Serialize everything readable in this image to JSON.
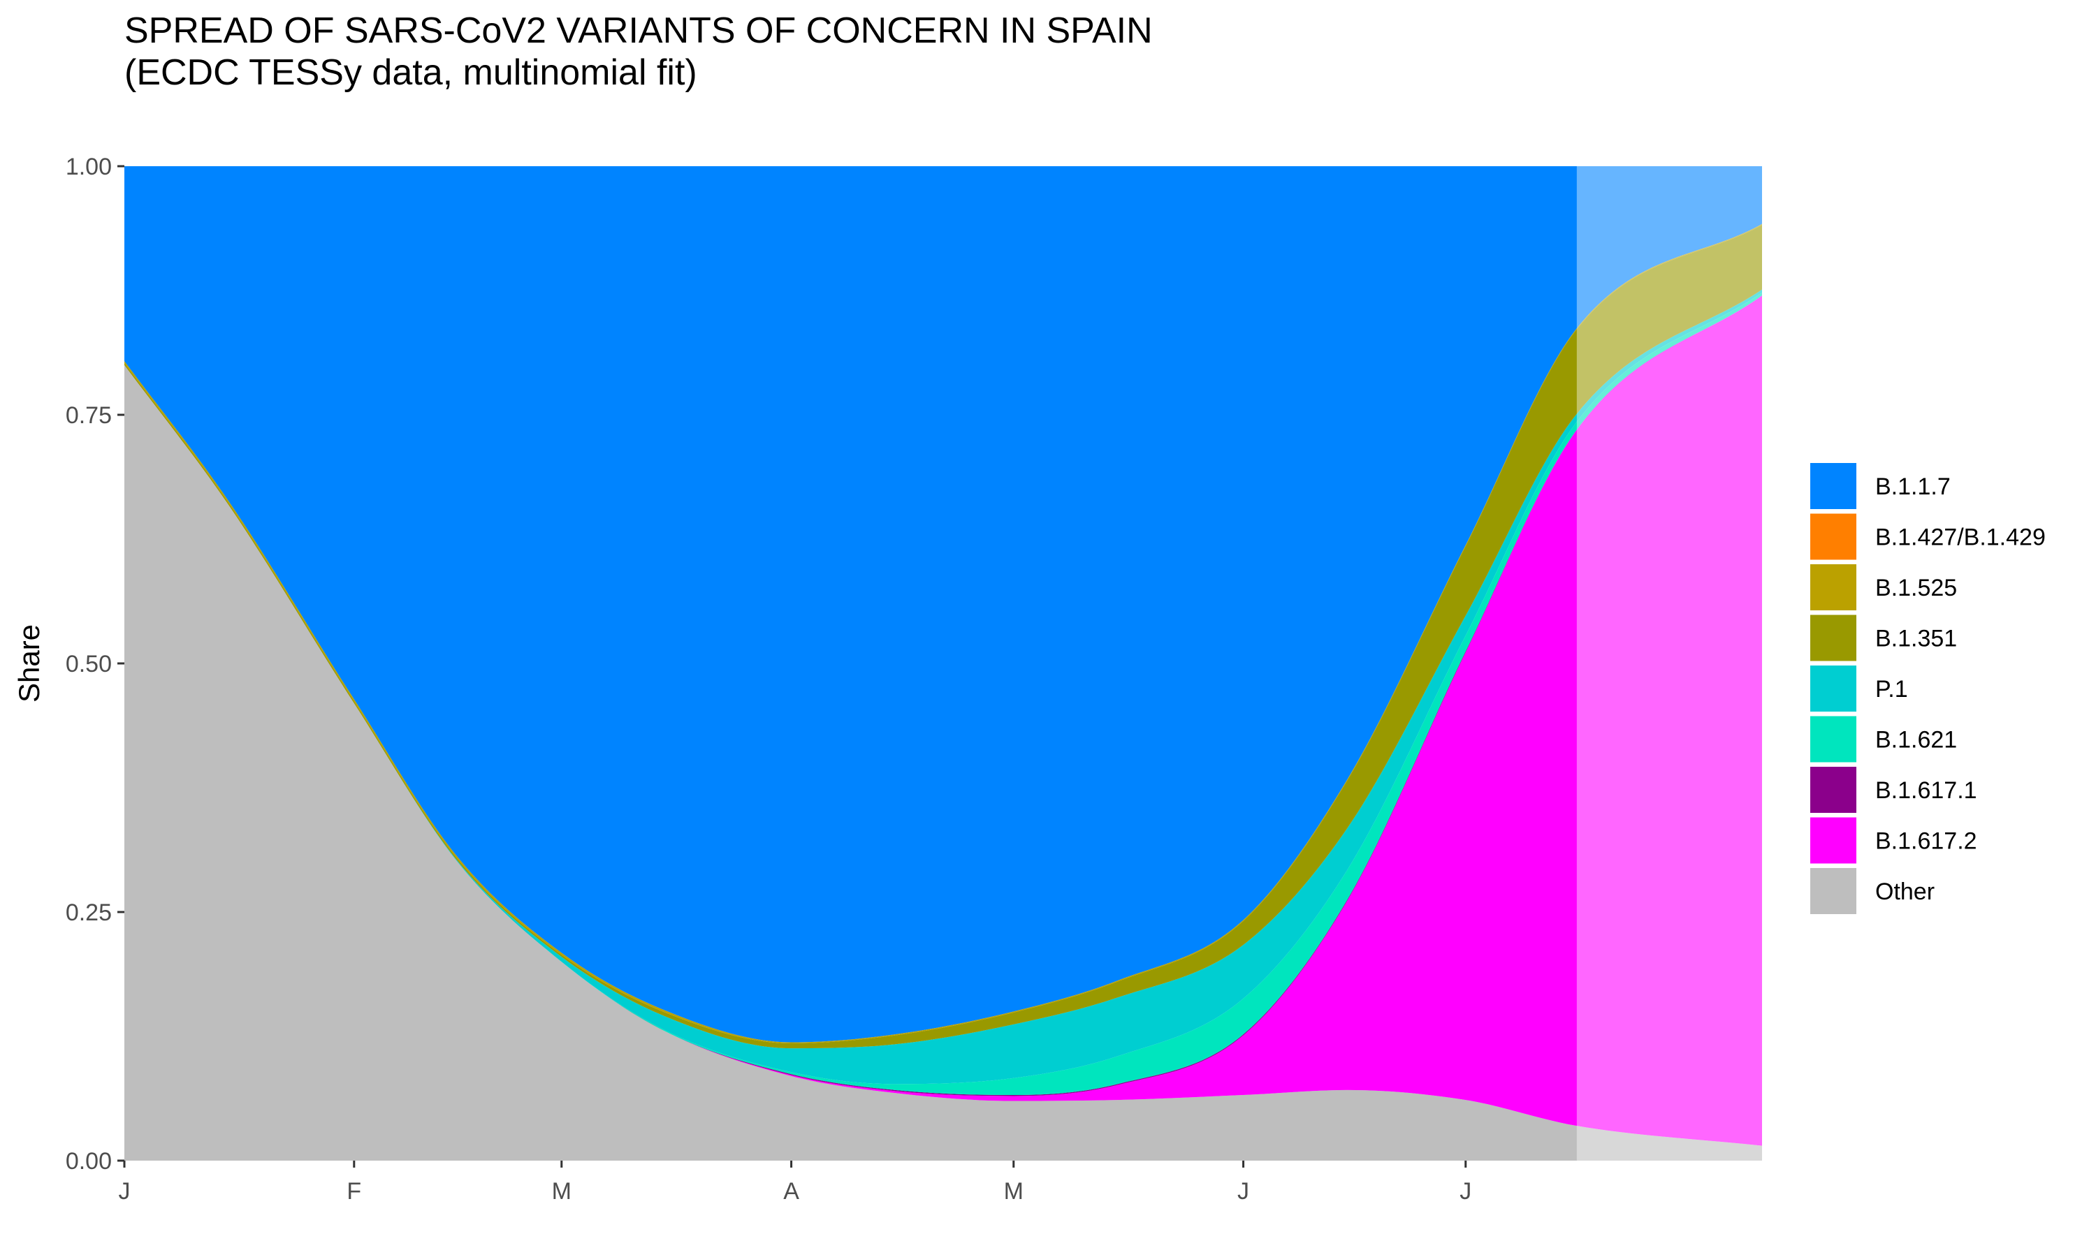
{
  "chart_data": {
    "type": "area",
    "title": "SPREAD OF SARS-CoV2 VARIANTS OF CONCERN IN SPAIN",
    "subtitle": "(ECDC TESSy data, multinomial fit)",
    "ylabel": "Share",
    "xlabel": "",
    "ylim": [
      0,
      1
    ],
    "yticks": [
      0,
      0.25,
      0.5,
      0.75,
      1
    ],
    "ytick_labels": [
      "0.00",
      "0.25",
      "0.50",
      "0.75",
      "1.00"
    ],
    "xlim": [
      "2021-01-01",
      "2021-08-10"
    ],
    "xticks": [
      "2021-01-01",
      "2021-02-01",
      "2021-03-01",
      "2021-04-01",
      "2021-05-01",
      "2021-06-01",
      "2021-07-01"
    ],
    "xtick_labels": [
      "J",
      "F",
      "M",
      "A",
      "M",
      "J",
      "J"
    ],
    "extrapolation_start": "2021-07-16",
    "legend_position": "right",
    "grid": false,
    "x": [
      "2021-01-01",
      "2021-01-15",
      "2021-02-01",
      "2021-02-15",
      "2021-03-01",
      "2021-03-15",
      "2021-04-01",
      "2021-04-15",
      "2021-05-01",
      "2021-05-15",
      "2021-06-01",
      "2021-06-15",
      "2021-07-01",
      "2021-07-16",
      "2021-08-10"
    ],
    "series": [
      {
        "name": "Other",
        "color": "#BEBEBE",
        "values": [
          0.8,
          0.66,
          0.46,
          0.3,
          0.2,
          0.13,
          0.085,
          0.068,
          0.06,
          0.061,
          0.066,
          0.071,
          0.061,
          0.035,
          0.015
        ]
      },
      {
        "name": "B.1.617.2",
        "color": "#FF00FF",
        "values": [
          0,
          0,
          0,
          0,
          0,
          0,
          0.001,
          0.002,
          0.005,
          0.015,
          0.06,
          0.19,
          0.45,
          0.7,
          0.855
        ]
      },
      {
        "name": "B.1.617.1",
        "color": "#8B008B",
        "values": [
          0,
          0,
          0,
          0,
          0,
          0,
          0.001,
          0.001,
          0.001,
          0.001,
          0.001,
          0.001,
          0.001,
          0,
          0
        ]
      },
      {
        "name": "B.1.621",
        "color": "#00E5BE",
        "values": [
          0,
          0,
          0,
          0,
          0,
          0.001,
          0.002,
          0.006,
          0.017,
          0.028,
          0.036,
          0.03,
          0.016,
          0.008,
          0.003
        ]
      },
      {
        "name": "P.1",
        "color": "#00CED1",
        "values": [
          0,
          0,
          0,
          0.001,
          0.005,
          0.014,
          0.024,
          0.04,
          0.054,
          0.059,
          0.054,
          0.042,
          0.02,
          0.008,
          0.003
        ]
      },
      {
        "name": "B.1.351",
        "color": "#999900",
        "values": [
          0.002,
          0.002,
          0.002,
          0.002,
          0.002,
          0.004,
          0.005,
          0.009,
          0.012,
          0.016,
          0.024,
          0.048,
          0.07,
          0.085,
          0.065
        ]
      },
      {
        "name": "B.1.525",
        "color": "#BBA100",
        "values": [
          0.002,
          0.002,
          0.002,
          0.002,
          0.002,
          0.002,
          0.001,
          0.001,
          0.001,
          0.001,
          0.001,
          0.001,
          0.001,
          0.001,
          0.001
        ]
      },
      {
        "name": "B.1.427/B.1.429",
        "color": "#FF7F00",
        "values": [
          0,
          0,
          0,
          0,
          0,
          0,
          0,
          0,
          0,
          0,
          0,
          0,
          0,
          0,
          0
        ]
      },
      {
        "name": "B.1.1.7",
        "color": "#0084FF",
        "values": [
          0.196,
          0.336,
          0.536,
          0.695,
          0.791,
          0.849,
          0.881,
          0.873,
          0.85,
          0.819,
          0.758,
          0.617,
          0.381,
          0.163,
          0.058
        ]
      }
    ],
    "legend_order": [
      "B.1.1.7",
      "B.1.427/B.1.429",
      "B.1.525",
      "B.1.351",
      "P.1",
      "B.1.621",
      "B.1.617.1",
      "B.1.617.2",
      "Other"
    ]
  }
}
